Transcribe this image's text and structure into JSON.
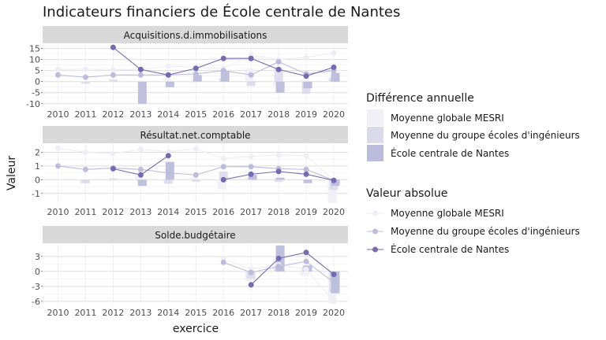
{
  "chart_data": {
    "type": "bar+line",
    "title": "Indicateurs financiers de École centrale de Nantes",
    "xlabel": "exercice",
    "ylabel": "Valeur",
    "x": [
      "2010",
      "2011",
      "2012",
      "2013",
      "2014",
      "2015",
      "2016",
      "2017",
      "2018",
      "2019",
      "2020"
    ],
    "colors": {
      "Moyenne globale MESRI": "#efedf5",
      "Moyenne du groupe écoles d'ingénieurs": "#bcbddc",
      "École centrale de Nantes": "#756bb1",
      "bar_light": "#f2f0f7",
      "bar_mid": "#dadaeb",
      "bar_dark": "#bcbddc"
    },
    "legend": {
      "bars_title": "Différence annuelle",
      "lines_title": "Valeur absolue",
      "entries": [
        "Moyenne globale MESRI",
        "Moyenne du groupe écoles d'ingénieurs",
        "École centrale de Nantes"
      ]
    },
    "panels": [
      {
        "title": "Acquisitions.d.immobilisations",
        "ylim": [
          -10.8,
          17
        ],
        "yticks": [
          -10,
          -5,
          0,
          5,
          10,
          15
        ],
        "ytick_labels": [
          "-10",
          "-5",
          "0",
          "5",
          "10",
          "15"
        ],
        "lines": [
          {
            "name": "Moyenne globale MESRI",
            "values": [
              5.5,
              5.6,
              5.5,
              5.5,
              7.0,
              6.5,
              6.0,
              12.0,
              10.0,
              11.0,
              13.0
            ]
          },
          {
            "name": "Moyenne du groupe écoles d'ingénieurs",
            "values": [
              3.0,
              2.0,
              3.0,
              3.0,
              3.0,
              3.5,
              5.0,
              3.0,
              9.0,
              3.5,
              5.0
            ]
          },
          {
            "name": "École centrale de Nantes",
            "values": [
              null,
              null,
              15.5,
              5.5,
              3.0,
              6.0,
              10.5,
              10.5,
              5.5,
              2.5,
              6.5
            ]
          }
        ],
        "bars": [
          {
            "name": "Moyenne globale MESRI",
            "values": [
              null,
              0.3,
              -0.2,
              0.0,
              1.5,
              -0.6,
              -0.5,
              6.0,
              -2.0,
              1.0,
              2.0
            ]
          },
          {
            "name": "Moyenne du groupe écoles d'ingénieurs",
            "values": [
              null,
              -1.0,
              1.0,
              0.0,
              0.0,
              0.5,
              1.5,
              -2.0,
              6.0,
              -5.5,
              1.5
            ]
          },
          {
            "name": "École centrale de Nantes",
            "values": [
              null,
              null,
              null,
              -10.0,
              -2.5,
              3.0,
              4.5,
              0.0,
              -5.0,
              -3.0,
              4.0
            ]
          }
        ]
      },
      {
        "title": "Résultat.net.comptable",
        "ylim": [
          -1.7,
          2.6
        ],
        "yticks": [
          -1,
          0,
          1,
          2
        ],
        "ytick_labels": [
          "-1",
          "0",
          "1",
          "2"
        ],
        "lines": [
          {
            "name": "Moyenne globale MESRI",
            "values": [
              2.3,
              2.0,
              1.9,
              2.2,
              2.05,
              2.25,
              1.55,
              1.7,
              1.8,
              1.75,
              -0.05
            ]
          },
          {
            "name": "Moyenne du groupe écoles d'ingénieurs",
            "values": [
              1.0,
              0.75,
              0.85,
              0.75,
              0.5,
              0.35,
              0.95,
              0.95,
              0.8,
              0.75,
              -0.05
            ]
          },
          {
            "name": "École centrale de Nantes",
            "values": [
              null,
              null,
              0.8,
              0.35,
              1.75,
              null,
              0.0,
              0.4,
              0.6,
              0.4,
              -0.05
            ]
          }
        ],
        "bars": [
          {
            "name": "Moyenne globale MESRI",
            "values": [
              null,
              -0.3,
              -0.1,
              0.3,
              -0.15,
              0.2,
              -0.7,
              0.15,
              0.1,
              -0.05,
              -1.7
            ]
          },
          {
            "name": "Moyenne du groupe écoles d'ingénieurs",
            "values": [
              null,
              -0.25,
              0.1,
              -0.1,
              -0.3,
              -0.15,
              0.6,
              0.0,
              -0.15,
              -0.05,
              -0.75
            ]
          },
          {
            "name": "École centrale de Nantes",
            "values": [
              null,
              null,
              null,
              -0.45,
              1.3,
              null,
              null,
              0.35,
              0.15,
              -0.25,
              -0.45
            ]
          }
        ]
      },
      {
        "title": "Solde.budgétaire",
        "ylim": [
          -6.5,
          5.5
        ],
        "yticks": [
          -6,
          -3,
          0,
          3
        ],
        "ytick_labels": [
          "-6",
          "-3",
          "0",
          "3"
        ],
        "lines": [
          {
            "name": "Moyenne globale MESRI",
            "values": [
              null,
              null,
              null,
              null,
              null,
              null,
              2.5,
              0.5,
              1.3,
              0.4,
              -6.0
            ]
          },
          {
            "name": "Moyenne du groupe écoles d'ingénieurs",
            "values": [
              null,
              null,
              null,
              null,
              null,
              null,
              1.8,
              -0.2,
              1.0,
              2.0,
              -2.2
            ]
          },
          {
            "name": "École centrale de Nantes",
            "values": [
              null,
              null,
              null,
              null,
              null,
              null,
              null,
              -2.7,
              2.6,
              3.8,
              -0.6
            ]
          }
        ],
        "bars": [
          {
            "name": "Moyenne globale MESRI",
            "values": [
              null,
              null,
              null,
              null,
              null,
              null,
              null,
              -2.0,
              0.8,
              -0.9,
              -6.4
            ]
          },
          {
            "name": "Moyenne du groupe écoles d'ingénieurs",
            "values": [
              null,
              null,
              null,
              null,
              null,
              null,
              null,
              -1.5,
              1.2,
              1.0,
              -4.2
            ]
          },
          {
            "name": "École centrale de Nantes",
            "values": [
              null,
              null,
              null,
              null,
              null,
              null,
              null,
              null,
              5.2,
              1.2,
              -4.4
            ]
          }
        ]
      }
    ]
  }
}
